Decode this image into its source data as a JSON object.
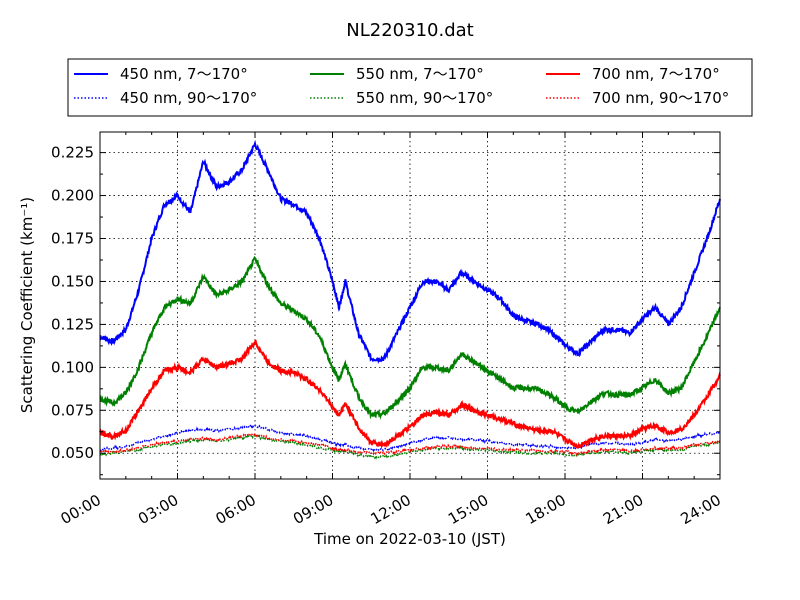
{
  "chart_data": {
    "type": "line",
    "title": "NL220310.dat",
    "xlabel": "Time on 2022-03-10 (JST)",
    "ylabel": "Scattering Coefficient (km⁻¹)",
    "x_unit": "hours",
    "xlim": [
      0,
      24
    ],
    "ylim": [
      0.035,
      0.237
    ],
    "x_ticks": [
      0,
      3,
      6,
      9,
      12,
      15,
      18,
      21,
      24
    ],
    "x_tick_labels": [
      "00:00",
      "03:00",
      "06:00",
      "09:00",
      "12:00",
      "15:00",
      "18:00",
      "21:00",
      "24:00"
    ],
    "y_ticks": [
      0.05,
      0.075,
      0.1,
      0.125,
      0.15,
      0.175,
      0.2,
      0.225
    ],
    "y_tick_labels": [
      "0.050",
      "0.075",
      "0.100",
      "0.125",
      "0.150",
      "0.175",
      "0.200",
      "0.225"
    ],
    "grid": true,
    "legend_position": "top, above plot",
    "x": [
      0,
      0.5,
      1,
      1.5,
      2,
      2.5,
      3,
      3.5,
      4,
      4.5,
      5,
      5.5,
      6,
      6.5,
      7,
      7.5,
      8,
      8.5,
      9,
      9.25,
      9.5,
      10,
      10.5,
      11,
      11.5,
      12,
      12.5,
      13,
      13.5,
      14,
      14.5,
      15,
      15.5,
      16,
      16.5,
      17,
      17.5,
      18,
      18.5,
      19,
      19.5,
      20,
      20.5,
      21,
      21.5,
      22,
      22.5,
      23,
      23.5,
      24
    ],
    "series": [
      {
        "name": "450 nm, 7～170°",
        "color": "#0000ff",
        "style": "solid",
        "values": [
          0.118,
          0.115,
          0.122,
          0.145,
          0.175,
          0.195,
          0.2,
          0.19,
          0.22,
          0.205,
          0.208,
          0.215,
          0.23,
          0.215,
          0.198,
          0.195,
          0.19,
          0.175,
          0.15,
          0.135,
          0.15,
          0.12,
          0.105,
          0.105,
          0.12,
          0.135,
          0.15,
          0.15,
          0.145,
          0.155,
          0.15,
          0.145,
          0.14,
          0.13,
          0.127,
          0.125,
          0.12,
          0.113,
          0.108,
          0.115,
          0.122,
          0.122,
          0.12,
          0.128,
          0.135,
          0.125,
          0.135,
          0.155,
          0.175,
          0.198
        ]
      },
      {
        "name": "450 nm, 90～170°",
        "color": "#0000ff",
        "style": "dotted",
        "values": [
          0.052,
          0.053,
          0.054,
          0.056,
          0.058,
          0.06,
          0.062,
          0.063,
          0.064,
          0.063,
          0.064,
          0.065,
          0.066,
          0.064,
          0.062,
          0.061,
          0.06,
          0.058,
          0.056,
          0.055,
          0.055,
          0.053,
          0.052,
          0.052,
          0.054,
          0.056,
          0.058,
          0.059,
          0.059,
          0.058,
          0.058,
          0.057,
          0.056,
          0.055,
          0.055,
          0.054,
          0.054,
          0.053,
          0.053,
          0.055,
          0.056,
          0.056,
          0.055,
          0.056,
          0.058,
          0.057,
          0.058,
          0.06,
          0.061,
          0.062
        ]
      },
      {
        "name": "550 nm, 7～170°",
        "color": "#008000",
        "style": "solid",
        "values": [
          0.082,
          0.079,
          0.085,
          0.1,
          0.12,
          0.135,
          0.14,
          0.137,
          0.153,
          0.142,
          0.145,
          0.15,
          0.163,
          0.148,
          0.137,
          0.133,
          0.128,
          0.118,
          0.1,
          0.093,
          0.102,
          0.083,
          0.072,
          0.073,
          0.08,
          0.088,
          0.1,
          0.1,
          0.098,
          0.108,
          0.103,
          0.098,
          0.093,
          0.088,
          0.088,
          0.087,
          0.083,
          0.077,
          0.074,
          0.08,
          0.085,
          0.084,
          0.084,
          0.088,
          0.093,
          0.085,
          0.088,
          0.103,
          0.118,
          0.135
        ]
      },
      {
        "name": "550 nm, 90～170°",
        "color": "#008000",
        "style": "dotted",
        "values": [
          0.049,
          0.05,
          0.051,
          0.052,
          0.054,
          0.055,
          0.056,
          0.057,
          0.058,
          0.057,
          0.058,
          0.059,
          0.06,
          0.058,
          0.057,
          0.056,
          0.055,
          0.053,
          0.052,
          0.051,
          0.051,
          0.049,
          0.048,
          0.048,
          0.049,
          0.051,
          0.052,
          0.053,
          0.053,
          0.053,
          0.052,
          0.052,
          0.051,
          0.051,
          0.05,
          0.05,
          0.05,
          0.049,
          0.049,
          0.05,
          0.051,
          0.051,
          0.05,
          0.051,
          0.052,
          0.052,
          0.052,
          0.054,
          0.055,
          0.056
        ]
      },
      {
        "name": "700 nm, 7～170°",
        "color": "#ff0000",
        "style": "solid",
        "values": [
          0.062,
          0.06,
          0.063,
          0.075,
          0.088,
          0.098,
          0.1,
          0.097,
          0.105,
          0.1,
          0.102,
          0.105,
          0.115,
          0.103,
          0.098,
          0.097,
          0.093,
          0.087,
          0.077,
          0.072,
          0.079,
          0.065,
          0.056,
          0.055,
          0.06,
          0.065,
          0.072,
          0.074,
          0.072,
          0.078,
          0.075,
          0.072,
          0.07,
          0.067,
          0.065,
          0.063,
          0.063,
          0.058,
          0.054,
          0.058,
          0.06,
          0.06,
          0.06,
          0.064,
          0.066,
          0.062,
          0.064,
          0.072,
          0.083,
          0.095
        ]
      },
      {
        "name": "700 nm, 90～170°",
        "color": "#ff0000",
        "style": "dotted",
        "values": [
          0.051,
          0.051,
          0.052,
          0.053,
          0.055,
          0.056,
          0.057,
          0.058,
          0.059,
          0.058,
          0.059,
          0.06,
          0.061,
          0.059,
          0.058,
          0.057,
          0.056,
          0.055,
          0.053,
          0.052,
          0.052,
          0.051,
          0.05,
          0.05,
          0.051,
          0.052,
          0.053,
          0.054,
          0.054,
          0.054,
          0.053,
          0.053,
          0.052,
          0.052,
          0.052,
          0.051,
          0.051,
          0.051,
          0.05,
          0.051,
          0.052,
          0.052,
          0.051,
          0.052,
          0.053,
          0.053,
          0.053,
          0.055,
          0.056,
          0.057
        ]
      }
    ]
  }
}
